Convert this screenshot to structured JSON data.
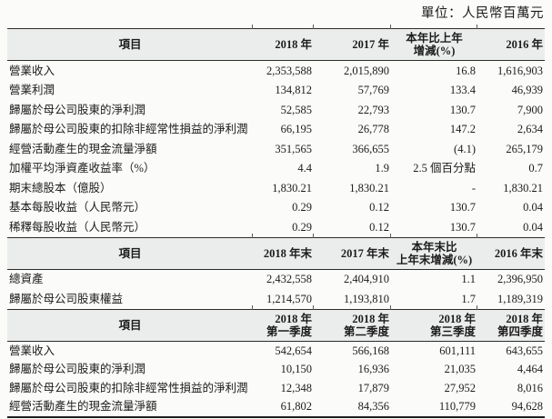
{
  "page": {
    "unit_label": "單位：人民幣百萬元"
  },
  "colors": {
    "page_background": "#fbfbf9",
    "header_background": "#ebedec",
    "rule": "#2b2b2b",
    "text": "#1c1c1c"
  },
  "tables": [
    {
      "headers": [
        {
          "lines": [
            "項目"
          ]
        },
        {
          "lines": [
            "2018 年"
          ]
        },
        {
          "lines": [
            "2017 年"
          ]
        },
        {
          "lines": [
            "本年比上年",
            "增減(%)"
          ]
        },
        {
          "lines": [
            "2016 年"
          ]
        }
      ],
      "rows": [
        [
          "營業收入",
          "2,353,588",
          "2,015,890",
          "16.8",
          "1,616,903"
        ],
        [
          "營業利潤",
          "134,812",
          "57,769",
          "133.4",
          "46,939"
        ],
        [
          "歸屬於母公司股東的淨利潤",
          "52,585",
          "22,793",
          "130.7",
          "7,900"
        ],
        [
          "歸屬於母公司股東的扣除非經常性損益的淨利潤",
          "66,195",
          "26,778",
          "147.2",
          "2,634"
        ],
        [
          "經營活動產生的現金流量淨額",
          "351,565",
          "366,655",
          "(4.1)",
          "265,179"
        ],
        [
          "加權平均淨資產收益率（%）",
          "4.4",
          "1.9",
          "2.5 個百分點",
          "0.7"
        ],
        [
          "期末總股本（億股）",
          "1,830.21",
          "1,830.21",
          "-",
          "1,830.21"
        ],
        [
          "基本每股收益（人民幣元）",
          "0.29",
          "0.12",
          "130.7",
          "0.04"
        ],
        [
          "稀釋每股收益（人民幣元）",
          "0.29",
          "0.12",
          "130.7",
          "0.04"
        ]
      ]
    },
    {
      "headers": [
        {
          "lines": [
            "項目"
          ]
        },
        {
          "lines": [
            "2018 年末"
          ]
        },
        {
          "lines": [
            "2017 年末"
          ]
        },
        {
          "lines": [
            "本年末比",
            "上年末增減(%)"
          ]
        },
        {
          "lines": [
            "2016 年末"
          ]
        }
      ],
      "rows": [
        [
          "總資產",
          "2,432,558",
          "2,404,910",
          "1.1",
          "2,396,950"
        ],
        [
          "歸屬於母公司股東權益",
          "1,214,570",
          "1,193,810",
          "1.7",
          "1,189,319"
        ]
      ]
    },
    {
      "headers": [
        {
          "lines": [
            "項目"
          ]
        },
        {
          "lines": [
            "2018 年",
            "第一季度"
          ]
        },
        {
          "lines": [
            "2018 年",
            "第二季度"
          ]
        },
        {
          "lines": [
            "2018 年",
            "第三季度"
          ]
        },
        {
          "lines": [
            "2018 年",
            "第四季度"
          ]
        }
      ],
      "rows": [
        [
          "營業收入",
          "542,654",
          "566,168",
          "601,111",
          "643,655"
        ],
        [
          "歸屬於母公司股東的淨利潤",
          "10,150",
          "16,936",
          "21,035",
          "4,464"
        ],
        [
          "歸屬於母公司股東的扣除非經常性損益的淨利潤",
          "12,348",
          "17,879",
          "27,952",
          "8,016"
        ],
        [
          "經營活動產生的現金流量淨額",
          "61,802",
          "84,356",
          "110,779",
          "94,628"
        ]
      ]
    }
  ]
}
